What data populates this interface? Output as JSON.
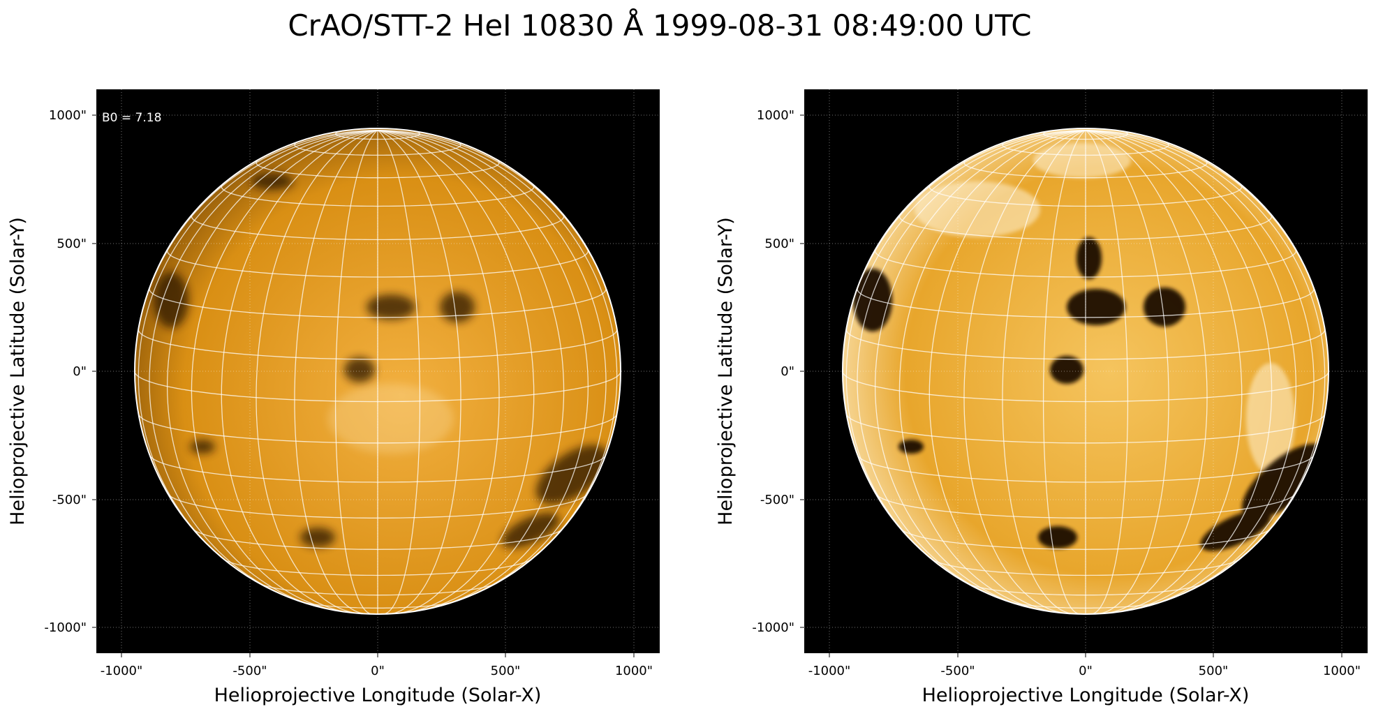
{
  "title": "CrAO/STT-2 HeI 10830 Å 1999-08-31 08:49:00 UTC",
  "colors": {
    "sun": "#e09a1c",
    "sun_dark": "#2a1600",
    "sun_bright": "#fff0c8",
    "background": "#000000",
    "grid": "#ffffff"
  },
  "panels": [
    {
      "name": "left",
      "annotation": "B0 = 7.18",
      "xlabel": "Helioprojective Longitude (Solar-X)",
      "ylabel": "Helioprojective Latitude (Solar-Y)",
      "xticks": [
        "-1000\"",
        "-500\"",
        "0\"",
        "500\"",
        "1000\""
      ],
      "yticks": [
        "1000\"",
        "500\"",
        "0\"",
        "-500\"",
        "-1000\""
      ],
      "contrast": "normal"
    },
    {
      "name": "right",
      "annotation": "",
      "xlabel": "Helioprojective Longitude (Solar-X)",
      "ylabel": "Helioprojective Latitude (Solar-Y)",
      "xticks": [
        "-1000\"",
        "-500\"",
        "0\"",
        "500\"",
        "1000\""
      ],
      "yticks": [
        "1000\"",
        "500\"",
        "0\"",
        "-500\"",
        "-1000\""
      ],
      "contrast": "enhanced"
    }
  ]
}
